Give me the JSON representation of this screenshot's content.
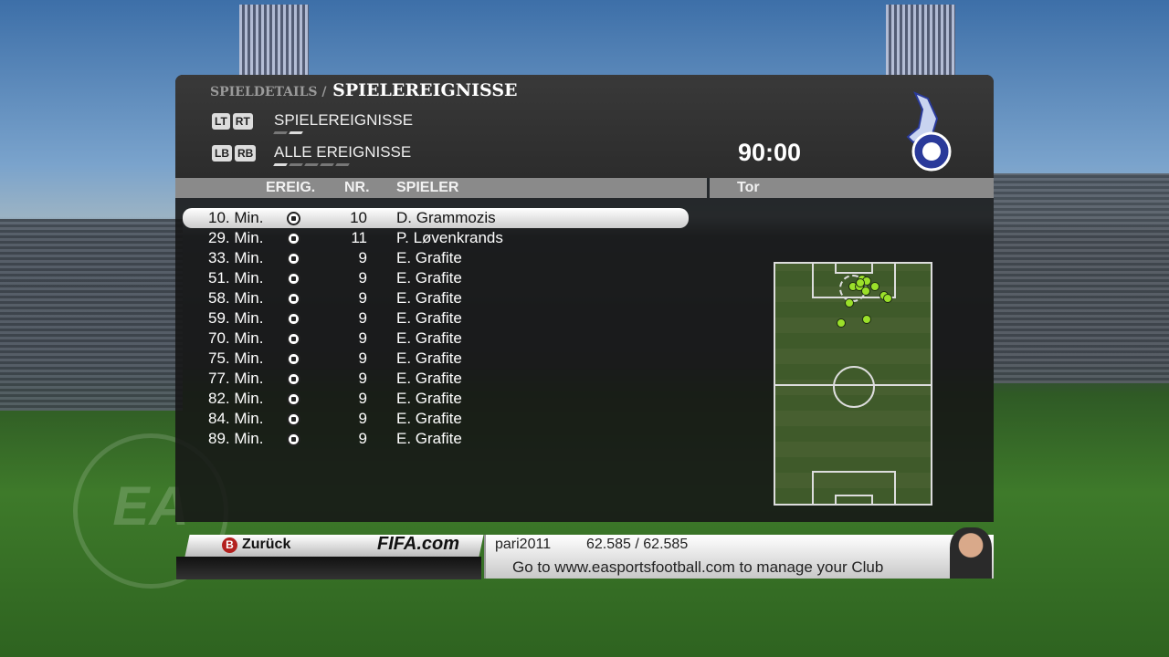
{
  "header": {
    "breadcrumb_parent": "SPIELDETAILS /",
    "title": "SPIELEREIGNISSE",
    "match_time": "90:00"
  },
  "tabs": [
    {
      "buttons": [
        "LT",
        "RT"
      ],
      "label": "SPIELEREIGNISSE"
    },
    {
      "buttons": [
        "LB",
        "RB"
      ],
      "label": "ALLE EREIGNISSE"
    }
  ],
  "table": {
    "columns": [
      "EREIG.",
      "NR.",
      "SPIELER"
    ],
    "rows": [
      {
        "minute": "10. Min.",
        "icon": "goal-ball-icon",
        "nr": "10",
        "player": "D. Grammozis",
        "selected": true
      },
      {
        "minute": "29. Min.",
        "icon": "goal-ball-icon",
        "nr": "11",
        "player": "P. Løvenkrands"
      },
      {
        "minute": "33. Min.",
        "icon": "goal-ball-icon",
        "nr": "9",
        "player": "E. Grafite"
      },
      {
        "minute": "51. Min.",
        "icon": "goal-ball-icon",
        "nr": "9",
        "player": "E. Grafite"
      },
      {
        "minute": "58. Min.",
        "icon": "goal-ball-icon",
        "nr": "9",
        "player": "E. Grafite"
      },
      {
        "minute": "59. Min.",
        "icon": "goal-ball-icon",
        "nr": "9",
        "player": "E. Grafite"
      },
      {
        "minute": "70. Min.",
        "icon": "goal-ball-icon",
        "nr": "9",
        "player": "E. Grafite"
      },
      {
        "minute": "75. Min.",
        "icon": "goal-ball-icon",
        "nr": "9",
        "player": "E. Grafite"
      },
      {
        "minute": "77. Min.",
        "icon": "goal-ball-icon",
        "nr": "9",
        "player": "E. Grafite"
      },
      {
        "minute": "82. Min.",
        "icon": "goal-ball-icon",
        "nr": "9",
        "player": "E. Grafite"
      },
      {
        "minute": "84. Min.",
        "icon": "goal-ball-icon",
        "nr": "9",
        "player": "E. Grafite"
      },
      {
        "minute": "89. Min.",
        "icon": "goal-ball-icon",
        "nr": "9",
        "player": "E. Grafite"
      }
    ]
  },
  "map": {
    "header": "Tor",
    "dot_color": "#9be02a"
  },
  "footer": {
    "back_button": "B",
    "back_label": "Zurück",
    "brand": "FIFA.com",
    "username": "pari2011",
    "points": "62.585 / 62.585",
    "message": "Go to www.easportsfootball.com to manage your Club"
  },
  "watermark": "EA SPORTS"
}
